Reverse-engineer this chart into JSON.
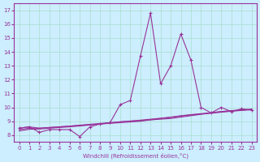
{
  "xlabel": "Windchill (Refroidissement éolien,°C)",
  "x": [
    0,
    1,
    2,
    3,
    4,
    5,
    6,
    7,
    8,
    9,
    10,
    11,
    12,
    13,
    14,
    15,
    16,
    17,
    18,
    19,
    20,
    21,
    22,
    23
  ],
  "y_main": [
    8.5,
    8.6,
    8.2,
    8.4,
    8.4,
    8.4,
    7.9,
    8.6,
    8.8,
    8.9,
    10.2,
    10.5,
    13.7,
    16.8,
    11.7,
    13.0,
    15.3,
    13.4,
    10.0,
    9.6,
    10.0,
    9.7,
    9.9,
    9.8
  ],
  "y_line1": [
    8.5,
    8.6,
    8.5,
    8.55,
    8.6,
    8.65,
    8.7,
    8.75,
    8.8,
    8.85,
    8.9,
    8.95,
    9.0,
    9.1,
    9.15,
    9.2,
    9.3,
    9.4,
    9.5,
    9.6,
    9.7,
    9.75,
    9.8,
    9.85
  ],
  "y_line2": [
    8.4,
    8.5,
    8.5,
    8.55,
    8.6,
    8.65,
    8.72,
    8.78,
    8.84,
    8.9,
    8.96,
    9.0,
    9.05,
    9.1,
    9.2,
    9.28,
    9.37,
    9.45,
    9.52,
    9.58,
    9.65,
    9.72,
    9.78,
    9.83
  ],
  "y_line3": [
    8.3,
    8.42,
    8.44,
    8.5,
    8.55,
    8.6,
    8.66,
    8.73,
    8.8,
    8.88,
    8.96,
    9.02,
    9.08,
    9.15,
    9.22,
    9.3,
    9.4,
    9.48,
    9.55,
    9.62,
    9.7,
    9.77,
    9.82,
    9.88
  ],
  "line_color": "#993399",
  "bg_color": "#cceeff",
  "grid_color": "#aaddcc",
  "ylim": [
    7.5,
    17.5
  ],
  "xlim": [
    -0.5,
    23.5
  ],
  "yticks": [
    8,
    9,
    10,
    11,
    12,
    13,
    14,
    15,
    16,
    17
  ],
  "xticks": [
    0,
    1,
    2,
    3,
    4,
    5,
    6,
    7,
    8,
    9,
    10,
    11,
    12,
    13,
    14,
    15,
    16,
    17,
    18,
    19,
    20,
    21,
    22,
    23
  ]
}
